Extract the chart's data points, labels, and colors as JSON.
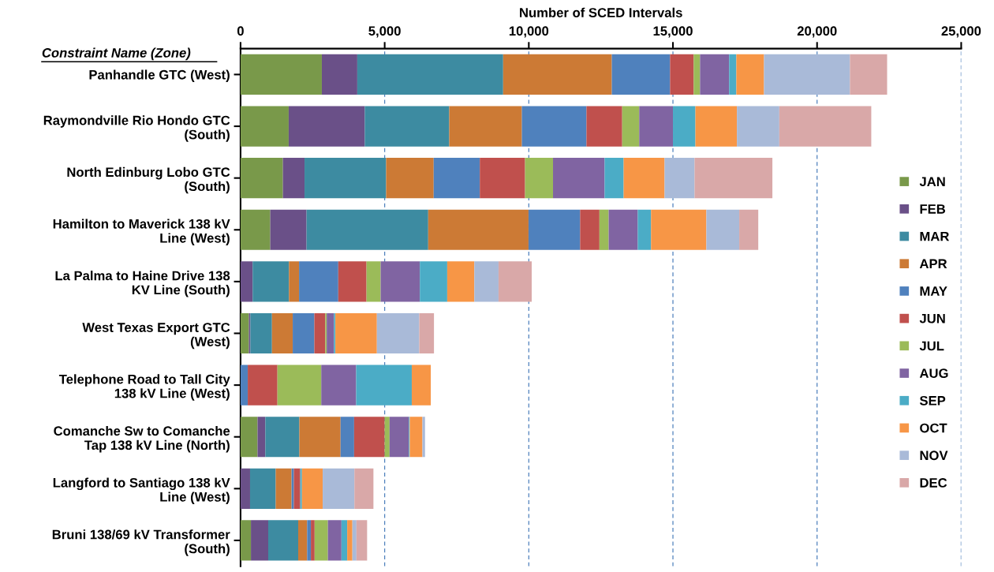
{
  "chart_data": {
    "type": "bar",
    "orientation": "horizontal",
    "stacked": true,
    "xlabel": "Number of SCED Intervals",
    "annotations": [
      "Constraint Name (Zone)"
    ],
    "categories": [
      "Panhandle GTC (West)",
      "Raymondville Rio Hondo GTC\n(South)",
      "North Edinburg Lobo GTC\n(South)",
      "Hamilton to Maverick 138 kV\nLine (West)",
      "La Palma to Haine Drive 138\nKV Line (South)",
      "West Texas Export GTC\n(West)",
      "Telephone Road to Tall City\n138 kV Line (West)",
      "Comanche Sw to Comanche\nTap 138 kV Line (North)",
      "Langford to Santiago 138 kV\nLine (West)",
      "Bruni 138/69 kV Transformer\n(South)"
    ],
    "xlim": [
      0,
      25000
    ],
    "xticks": [
      0,
      {
        "value": 5000,
        "label": "5,000"
      },
      {
        "value": 10000,
        "label": "10,000"
      },
      {
        "value": 15000,
        "label": "15,000"
      },
      {
        "value": 20000,
        "label": "20,000"
      },
      {
        "value": 25000,
        "label": "25,000"
      }
    ],
    "grid": "x",
    "legend": "right",
    "series": [
      {
        "name": "JAN",
        "color": "#79994a",
        "values": [
          2820,
          1670,
          1470,
          1030,
          0,
          290,
          0,
          590,
          0,
          360
        ]
      },
      {
        "name": "FEB",
        "color": "#6a5088",
        "values": [
          1230,
          2640,
          750,
          1260,
          420,
          50,
          0,
          270,
          330,
          600
        ]
      },
      {
        "name": "MAR",
        "color": "#3d8ba1",
        "values": [
          5060,
          2930,
          2830,
          4220,
          1260,
          750,
          0,
          1180,
          890,
          1040
        ]
      },
      {
        "name": "APR",
        "color": "#cc7a35",
        "values": [
          3770,
          2520,
          1650,
          3480,
          350,
          720,
          0,
          1430,
          550,
          310
        ]
      },
      {
        "name": "MAY",
        "color": "#4f81bd",
        "values": [
          2020,
          2240,
          1600,
          1790,
          1360,
          750,
          250,
          470,
          80,
          130
        ]
      },
      {
        "name": "JUN",
        "color": "#c0504d",
        "values": [
          820,
          1240,
          1570,
          670,
          980,
          380,
          1030,
          1060,
          220,
          130
        ]
      },
      {
        "name": "JUL",
        "color": "#9bbb59",
        "values": [
          220,
          590,
          970,
          320,
          490,
          50,
          1520,
          170,
          0,
          460
        ]
      },
      {
        "name": "AUG",
        "color": "#8064a2",
        "values": [
          1010,
          1170,
          1790,
          1010,
          1360,
          250,
          1210,
          670,
          0,
          470
        ]
      },
      {
        "name": "SEP",
        "color": "#4bacc6",
        "values": [
          250,
          780,
          660,
          460,
          950,
          50,
          1930,
          30,
          60,
          200
        ]
      },
      {
        "name": "OCT",
        "color": "#f79646",
        "values": [
          960,
          1440,
          1420,
          1920,
          940,
          1440,
          660,
          440,
          720,
          180
        ]
      },
      {
        "name": "NOV",
        "color": "#a9bad8",
        "values": [
          2980,
          1470,
          1040,
          1140,
          840,
          1470,
          0,
          90,
          1100,
          140
        ]
      },
      {
        "name": "DEC",
        "color": "#d9a8a8",
        "values": [
          1290,
          3190,
          2700,
          660,
          1150,
          510,
          0,
          0,
          660,
          370
        ]
      }
    ]
  }
}
